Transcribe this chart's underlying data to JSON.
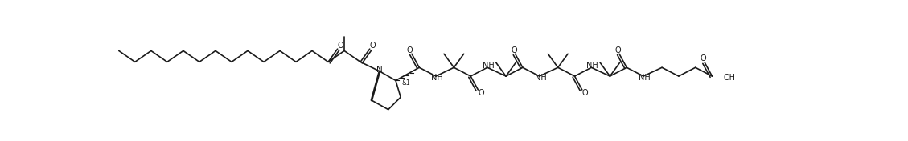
{
  "bg_color": "#ffffff",
  "line_color": "#1a1a1a",
  "lw": 1.2,
  "fig_width": 11.29,
  "fig_height": 1.76,
  "dpi": 100,
  "xlim": [
    0,
    1129
  ],
  "ylim": [
    0,
    176
  ]
}
